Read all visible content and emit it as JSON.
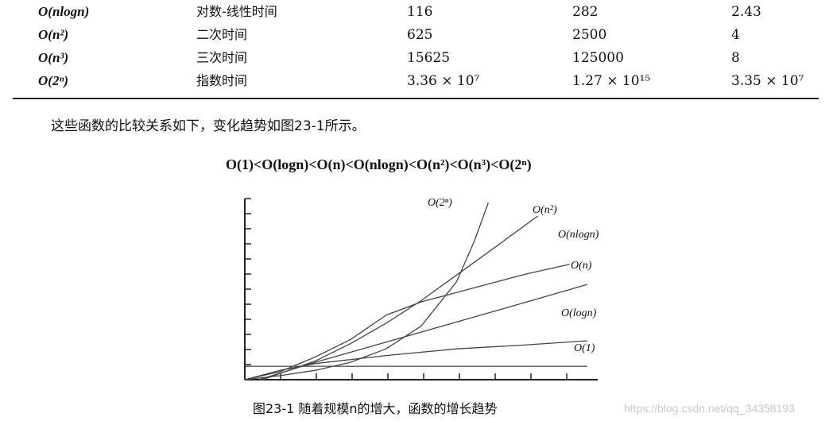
{
  "table": {
    "rows": [
      {
        "notation": "O(nlogn)",
        "name": "对数-线性时间",
        "v1": "116",
        "v2": "282",
        "v3": "2.43"
      },
      {
        "notation": "O(n²)",
        "name": "二次时间",
        "v1": "625",
        "v2": "2500",
        "v3": "4"
      },
      {
        "notation": "O(n³)",
        "name": "三次时间",
        "v1": "15625",
        "v2": "125000",
        "v3": "8"
      },
      {
        "notation": "O(2ⁿ)",
        "name": "指数时间",
        "v1": "3.36 × 10⁷",
        "v2": "1.27 × 10¹⁵",
        "v3": "3.35 × 10⁷"
      }
    ]
  },
  "paragraph": "这些函数的比较关系如下，变化趋势如图23-1所示。",
  "relation": "O(1)<O(logn)<O(n)<O(nlogn)<O(n²)<O(n³)<O(2ⁿ)",
  "chart_data": {
    "type": "line",
    "title": "",
    "xlabel": "",
    "ylabel": "",
    "x_ticks": 9,
    "y_ticks": 12,
    "series": [
      {
        "name": "O(2ⁿ)",
        "x": [
          0,
          1,
          2,
          3,
          4,
          5,
          6,
          6.5,
          6.9
        ],
        "y": [
          0,
          0.3,
          0.7,
          1.3,
          2.3,
          4.0,
          7.3,
          10.3,
          13.2
        ]
      },
      {
        "name": "O(n²)",
        "x": [
          0.5,
          2,
          3,
          4,
          5,
          6,
          7,
          8.3
        ],
        "y": [
          0,
          1.4,
          2.7,
          4.2,
          5.9,
          7.8,
          9.7,
          12.2
        ]
      },
      {
        "name": "O(nlogn)",
        "x": [
          0,
          1,
          2,
          3,
          4,
          5,
          6,
          7,
          8,
          9.2
        ],
        "y": [
          0,
          0.6,
          1.7,
          3.0,
          4.8,
          5.8,
          6.5,
          7.2,
          7.9,
          8.6
        ]
      },
      {
        "name": "O(n)",
        "x": [
          0.4,
          2,
          4,
          6,
          8,
          9.7
        ],
        "y": [
          0,
          1.3,
          2.8,
          4.3,
          5.8,
          7.1
        ]
      },
      {
        "name": "O(logn)",
        "x": [
          0,
          1,
          2,
          4,
          6,
          8,
          9.7
        ],
        "y": [
          0,
          0.7,
          1.2,
          1.8,
          2.3,
          2.6,
          2.9
        ]
      },
      {
        "name": "O(1)",
        "x": [
          0,
          9.7
        ],
        "y": [
          1.0,
          1.0
        ]
      }
    ],
    "curve_labels": [
      "O(2ⁿ)",
      "O(n²)",
      "O(nlogn)",
      "O(n)",
      "O(logn)",
      "O(1)"
    ]
  },
  "caption": "图23-1  随着规模n的增大，函数的增长趋势",
  "watermark": "https://blog.csdn.net/qq_34358193"
}
